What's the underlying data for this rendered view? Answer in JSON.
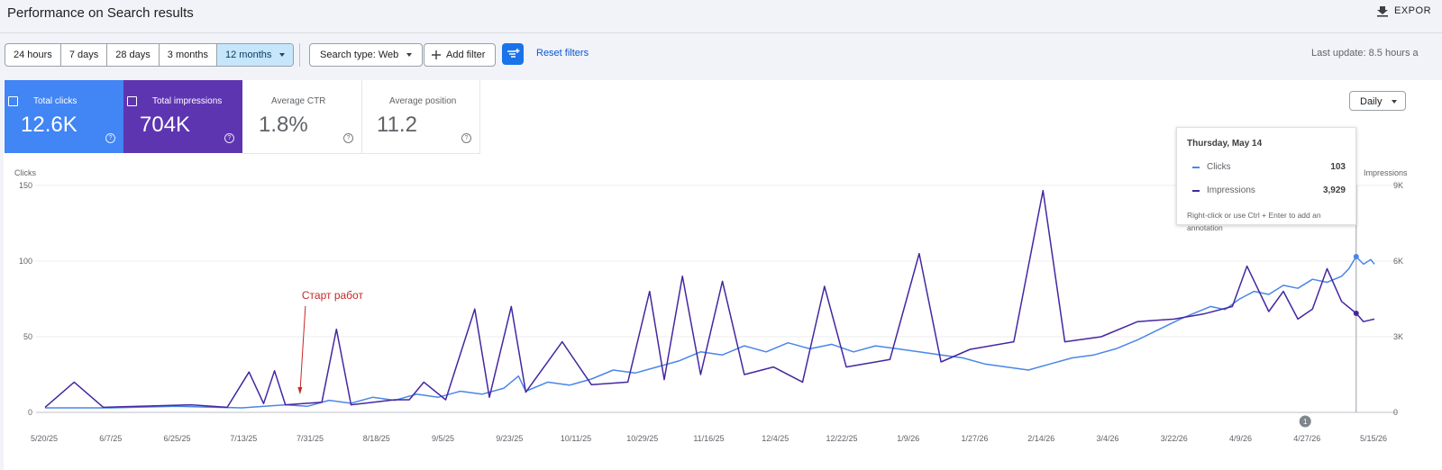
{
  "header": {
    "title": "Performance on Search results",
    "export_label": "EXPOR"
  },
  "filters": {
    "ranges": [
      "24 hours",
      "7 days",
      "28 days",
      "3 months",
      "12 months"
    ],
    "selected_range": "12 months",
    "search_type": "Search type: Web",
    "add_filter": "Add filter",
    "reset": "Reset filters",
    "last_update": "Last update: 8.5 hours a"
  },
  "metrics": [
    {
      "label": "Total clicks",
      "value": "12.6K",
      "checked": true,
      "color": "#4285f4"
    },
    {
      "label": "Total impressions",
      "value": "704K",
      "checked": true,
      "color": "#5e35b1"
    },
    {
      "label": "Average CTR",
      "value": "1.8%",
      "checked": false
    },
    {
      "label": "Average position",
      "value": "11.2",
      "checked": false
    }
  ],
  "granularity": "Daily",
  "tooltip": {
    "date": "Thursday, May 14",
    "clicks_label": "Clicks",
    "clicks_value": "103",
    "impressions_label": "Impressions",
    "impressions_value": "3,929",
    "note": "Right-click or use Ctrl + Enter to add an annotation"
  },
  "chart_data": {
    "type": "line",
    "ylabel_left": "Clicks",
    "ylabel_right": "Impressions",
    "yticks_left": [
      "150",
      "100",
      "50",
      "0"
    ],
    "yticks_right": [
      "9K",
      "6K",
      "3K",
      "0"
    ],
    "ylim_left": [
      0,
      150
    ],
    "ylim_right": [
      0,
      9000
    ],
    "xticks": [
      "5/20/25",
      "6/7/25",
      "6/25/25",
      "7/13/25",
      "7/31/25",
      "8/18/25",
      "9/5/25",
      "9/23/25",
      "10/11/25",
      "10/29/25",
      "11/16/25",
      "12/4/25",
      "12/22/25",
      "1/9/26",
      "1/27/26",
      "2/14/26",
      "3/4/26",
      "3/22/26",
      "4/9/26",
      "4/27/26",
      "5/15/26"
    ],
    "annotation": {
      "text": "Старт работ",
      "date": "7/29/25"
    },
    "marker_label": "1",
    "series": [
      {
        "name": "Clicks",
        "color": "#4a86e8",
        "axis": "left",
        "values": [
          [
            0,
            3
          ],
          [
            18,
            3
          ],
          [
            36,
            4
          ],
          [
            54,
            3
          ],
          [
            66,
            5
          ],
          [
            72,
            4
          ],
          [
            78,
            8
          ],
          [
            84,
            6
          ],
          [
            90,
            10
          ],
          [
            96,
            8
          ],
          [
            102,
            12
          ],
          [
            108,
            10
          ],
          [
            114,
            14
          ],
          [
            120,
            12
          ],
          [
            126,
            16
          ],
          [
            130,
            24
          ],
          [
            132,
            14
          ],
          [
            138,
            20
          ],
          [
            144,
            18
          ],
          [
            150,
            22
          ],
          [
            156,
            28
          ],
          [
            162,
            26
          ],
          [
            168,
            30
          ],
          [
            174,
            34
          ],
          [
            180,
            40
          ],
          [
            186,
            38
          ],
          [
            192,
            44
          ],
          [
            198,
            40
          ],
          [
            204,
            46
          ],
          [
            210,
            42
          ],
          [
            216,
            45
          ],
          [
            222,
            40
          ],
          [
            228,
            44
          ],
          [
            234,
            42
          ],
          [
            240,
            40
          ],
          [
            246,
            38
          ],
          [
            252,
            36
          ],
          [
            258,
            32
          ],
          [
            264,
            30
          ],
          [
            270,
            28
          ],
          [
            276,
            32
          ],
          [
            282,
            36
          ],
          [
            288,
            38
          ],
          [
            294,
            42
          ],
          [
            300,
            48
          ],
          [
            306,
            55
          ],
          [
            312,
            62
          ],
          [
            316,
            66
          ],
          [
            320,
            70
          ],
          [
            324,
            68
          ],
          [
            328,
            75
          ],
          [
            332,
            80
          ],
          [
            336,
            78
          ],
          [
            340,
            84
          ],
          [
            344,
            82
          ],
          [
            348,
            88
          ],
          [
            352,
            86
          ],
          [
            356,
            90
          ],
          [
            358,
            95
          ],
          [
            360,
            103
          ],
          [
            362,
            98
          ],
          [
            364,
            101
          ],
          [
            365,
            98
          ]
        ]
      },
      {
        "name": "Impressions",
        "color": "#4527a0",
        "axis": "right",
        "values": [
          [
            0,
            200
          ],
          [
            8,
            1200
          ],
          [
            16,
            200
          ],
          [
            28,
            250
          ],
          [
            40,
            300
          ],
          [
            50,
            200
          ],
          [
            56,
            1600
          ],
          [
            60,
            350
          ],
          [
            63,
            1650
          ],
          [
            66,
            300
          ],
          [
            76,
            400
          ],
          [
            80,
            3300
          ],
          [
            84,
            300
          ],
          [
            96,
            500
          ],
          [
            100,
            500
          ],
          [
            104,
            1200
          ],
          [
            110,
            500
          ],
          [
            118,
            4100
          ],
          [
            122,
            600
          ],
          [
            128,
            4200
          ],
          [
            132,
            800
          ],
          [
            142,
            2800
          ],
          [
            150,
            1100
          ],
          [
            160,
            1200
          ],
          [
            166,
            4800
          ],
          [
            170,
            1300
          ],
          [
            175,
            5400
          ],
          [
            180,
            1500
          ],
          [
            186,
            5200
          ],
          [
            192,
            1500
          ],
          [
            200,
            1800
          ],
          [
            208,
            1200
          ],
          [
            214,
            5000
          ],
          [
            220,
            1800
          ],
          [
            232,
            2100
          ],
          [
            240,
            6300
          ],
          [
            246,
            2000
          ],
          [
            254,
            2500
          ],
          [
            266,
            2800
          ],
          [
            274,
            8800
          ],
          [
            280,
            2800
          ],
          [
            290,
            3000
          ],
          [
            300,
            3600
          ],
          [
            310,
            3700
          ],
          [
            318,
            3900
          ],
          [
            326,
            4200
          ],
          [
            330,
            5800
          ],
          [
            336,
            4000
          ],
          [
            340,
            4800
          ],
          [
            344,
            3700
          ],
          [
            348,
            4100
          ],
          [
            352,
            5700
          ],
          [
            356,
            4400
          ],
          [
            360,
            3929
          ],
          [
            362,
            3600
          ],
          [
            365,
            3700
          ]
        ]
      }
    ]
  }
}
